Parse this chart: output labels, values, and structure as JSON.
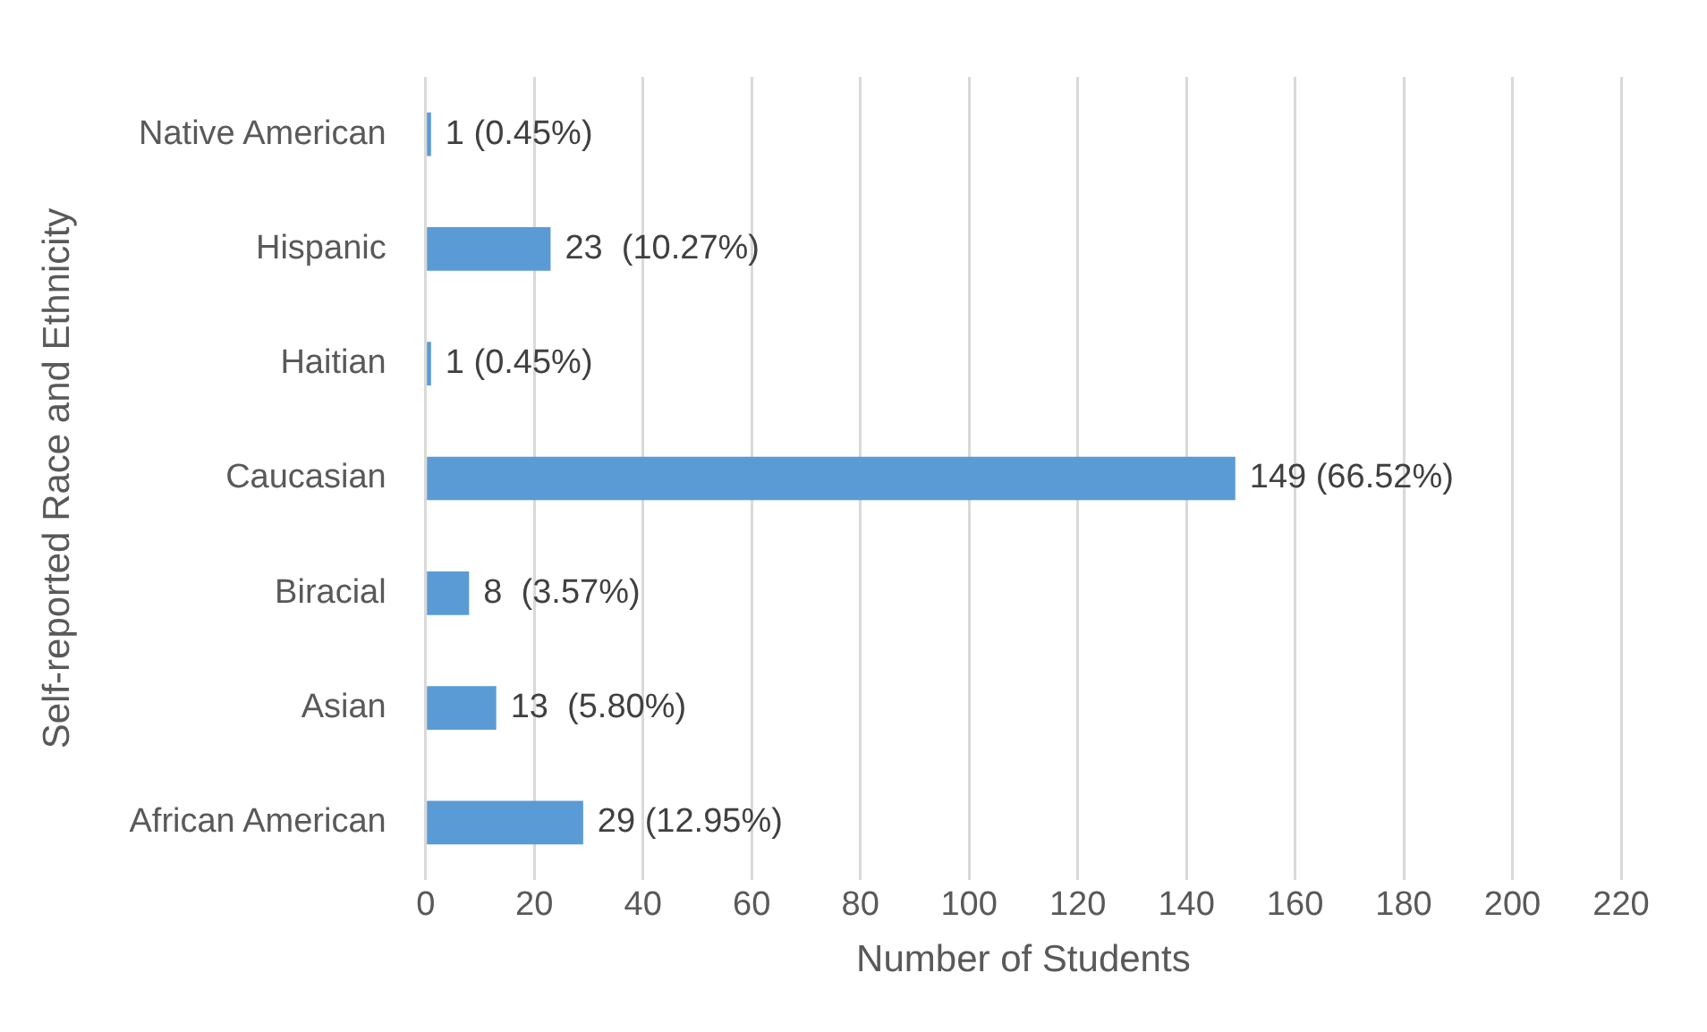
{
  "chart_data": {
    "type": "bar",
    "orientation": "horizontal",
    "xlabel": "Number of Students",
    "ylabel": "Self-reported Race and Ethnicity",
    "categories": [
      "Native American",
      "Hispanic",
      "Haitian",
      "Caucasian",
      "Biracial",
      "Asian",
      "African American"
    ],
    "values": [
      1,
      23,
      1,
      149,
      8,
      13,
      29
    ],
    "value_labels": [
      "1 (0.45%)",
      "23  (10.27%)",
      "1 (0.45%)",
      "149 (66.52%)",
      "8  (3.57%)",
      "13  (5.80%)",
      "29 (12.95%)"
    ],
    "color": "#5b9bd5",
    "xlim": [
      0,
      220
    ],
    "xticks": [
      0,
      20,
      40,
      60,
      80,
      100,
      120,
      140,
      160,
      180,
      200,
      220
    ],
    "grid": "x",
    "legend": false
  }
}
